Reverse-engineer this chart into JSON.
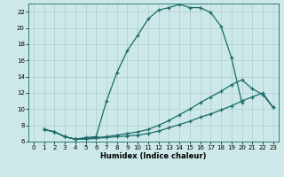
{
  "xlabel": "Humidex (Indice chaleur)",
  "bg_color": "#cce8e8",
  "grid_color": "#b0cccc",
  "line_color": "#1a6b6b",
  "xlim": [
    -0.5,
    23.5
  ],
  "ylim": [
    6,
    23
  ],
  "yticks": [
    6,
    8,
    10,
    12,
    14,
    16,
    18,
    20,
    22
  ],
  "xticks": [
    0,
    1,
    2,
    3,
    4,
    5,
    6,
    7,
    8,
    9,
    10,
    11,
    12,
    13,
    14,
    15,
    16,
    17,
    18,
    19,
    20,
    21,
    22,
    23
  ],
  "line1_x": [
    1,
    2,
    3,
    4,
    5,
    6,
    7,
    8,
    9,
    10,
    11,
    12,
    13,
    14,
    15,
    16,
    17,
    18,
    19,
    20
  ],
  "line1_y": [
    7.5,
    7.2,
    6.6,
    6.3,
    6.5,
    6.6,
    11.0,
    14.5,
    17.2,
    19.1,
    21.1,
    22.2,
    22.5,
    22.9,
    22.5,
    22.5,
    21.9,
    20.2,
    16.3,
    10.8
  ],
  "line2_x": [
    1,
    2,
    3,
    4,
    5,
    6,
    7,
    8,
    9,
    10,
    11,
    12,
    13,
    14,
    15,
    16,
    17,
    18,
    19,
    20,
    21,
    22,
    23
  ],
  "line2_y": [
    7.5,
    7.2,
    6.6,
    6.3,
    6.4,
    6.5,
    6.6,
    6.8,
    7.0,
    7.2,
    7.5,
    8.0,
    8.6,
    9.3,
    10.0,
    10.8,
    11.5,
    12.2,
    13.0,
    13.6,
    12.5,
    11.8,
    10.2
  ],
  "line3_x": [
    1,
    2,
    3,
    4,
    5,
    6,
    7,
    8,
    9,
    10,
    11,
    12,
    13,
    14,
    15,
    16,
    17,
    18,
    19,
    20,
    21,
    22,
    23
  ],
  "line3_y": [
    7.5,
    7.2,
    6.6,
    6.3,
    6.3,
    6.4,
    6.5,
    6.6,
    6.7,
    6.8,
    7.0,
    7.3,
    7.7,
    8.1,
    8.5,
    9.0,
    9.4,
    9.9,
    10.4,
    11.0,
    11.5,
    12.0,
    10.2
  ]
}
